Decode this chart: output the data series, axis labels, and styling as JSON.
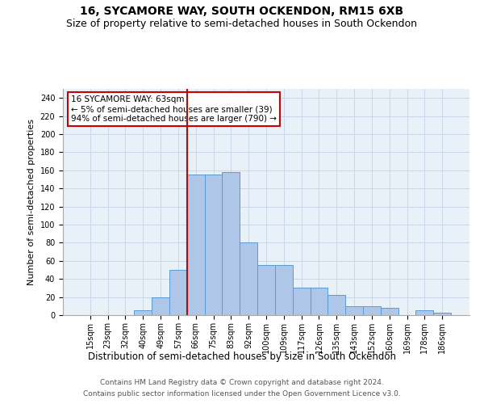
{
  "title_line1": "16, SYCAMORE WAY, SOUTH OCKENDON, RM15 6XB",
  "title_line2": "Size of property relative to semi-detached houses in South Ockendon",
  "xlabel": "Distribution of semi-detached houses by size in South Ockendon",
  "ylabel": "Number of semi-detached properties",
  "footer_line1": "Contains HM Land Registry data © Crown copyright and database right 2024.",
  "footer_line2": "Contains public sector information licensed under the Open Government Licence v3.0.",
  "annotation_title": "16 SYCAMORE WAY: 63sqm",
  "annotation_line1": "← 5% of semi-detached houses are smaller (39)",
  "annotation_line2": "94% of semi-detached houses are larger (790) →",
  "categories": [
    "15sqm",
    "23sqm",
    "32sqm",
    "40sqm",
    "49sqm",
    "57sqm",
    "66sqm",
    "75sqm",
    "83sqm",
    "92sqm",
    "100sqm",
    "109sqm",
    "117sqm",
    "126sqm",
    "135sqm",
    "143sqm",
    "152sqm",
    "160sqm",
    "169sqm",
    "178sqm",
    "186sqm"
  ],
  "values": [
    0,
    0,
    0,
    5,
    20,
    50,
    155,
    155,
    158,
    80,
    55,
    55,
    30,
    30,
    22,
    10,
    10,
    8,
    0,
    5,
    3
  ],
  "bar_color": "#aec6e8",
  "bar_edge_color": "#5b9bd5",
  "vline_color": "#cc0000",
  "vline_position": 5.5,
  "annotation_box_edge_color": "#cc0000",
  "annotation_box_face_color": "#ffffff",
  "ylim": [
    0,
    250
  ],
  "yticks": [
    0,
    20,
    40,
    60,
    80,
    100,
    120,
    140,
    160,
    180,
    200,
    220,
    240
  ],
  "grid_color": "#c8d8e8",
  "background_color": "#e8f0f8",
  "title_fontsize": 10,
  "subtitle_fontsize": 9,
  "ylabel_fontsize": 8,
  "tick_fontsize": 7,
  "footer_fontsize": 6.5,
  "annotation_fontsize": 7.5,
  "xlabel_fontsize": 8.5
}
